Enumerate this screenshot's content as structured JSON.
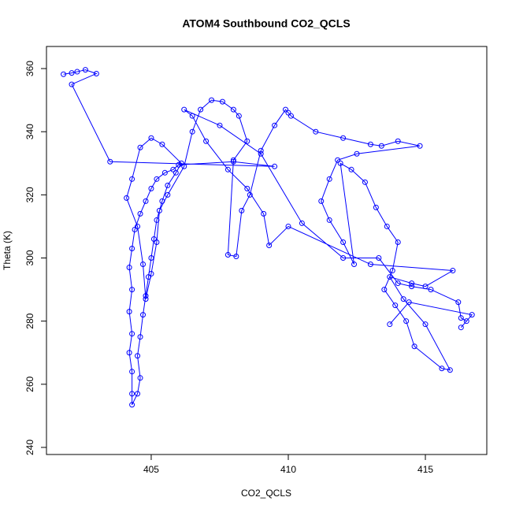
{
  "chart_data": {
    "type": "line",
    "title": "ATOM4 Southbound CO2_QCLS",
    "x_label": "CO2_QCLS",
    "y_label": "Theta (K)",
    "color": "#0000ff",
    "markers": true,
    "grid": false,
    "xlim": [
      401.18,
      417.24
    ],
    "ylim": [
      237.75,
      367
    ],
    "xticks": [
      405,
      410,
      415
    ],
    "yticks": [
      240,
      260,
      280,
      300,
      320,
      340,
      360
    ],
    "x": [
      401.8,
      402.1,
      402.3,
      402.6,
      403.0,
      402.1,
      403.5,
      409.5,
      408.0,
      406.0,
      405.8,
      405.5,
      405.2,
      405.0,
      404.8,
      404.6,
      404.4,
      404.3,
      404.2,
      404.3,
      404.2,
      404.3,
      404.2,
      404.3,
      404.3,
      404.3,
      404.5,
      404.6,
      404.5,
      404.6,
      404.7,
      404.8,
      404.9,
      405.0,
      405.1,
      405.2,
      405.4,
      405.6,
      405.9,
      406.1,
      405.4,
      405.0,
      404.6,
      404.3,
      404.1,
      404.5,
      404.7,
      404.8,
      405.0,
      405.2,
      405.3,
      405.6,
      406.2,
      406.5,
      406.8,
      407.2,
      407.6,
      408.0,
      408.2,
      408.5,
      408.0,
      407.8,
      408.1,
      408.3,
      408.6,
      409.0,
      409.5,
      409.9,
      410.0,
      410.1,
      411.0,
      412.0,
      413.0,
      413.4,
      414.0,
      414.8,
      412.5,
      411.8,
      411.5,
      411.2,
      411.5,
      412.0,
      412.4,
      411.9,
      412.3,
      412.8,
      413.2,
      413.6,
      414.0,
      413.8,
      413.5,
      413.9,
      414.3,
      414.6,
      415.6,
      415.9,
      415.0,
      414.2,
      413.7,
      414.5,
      415.0,
      416.0,
      413.0,
      410.0,
      409.3,
      409.1,
      408.5,
      407.8,
      407.0,
      406.5,
      406.2,
      407.5,
      409.0,
      410.5,
      412.0,
      413.3,
      414.0,
      414.5,
      415.2,
      416.2,
      416.3,
      416.5,
      416.3,
      416.7,
      414.4,
      413.7
    ],
    "values": [
      358.2,
      358.6,
      359.0,
      359.6,
      358.4,
      355.0,
      330.5,
      329.0,
      330.5,
      329.5,
      328.0,
      327.0,
      325,
      322,
      318,
      314,
      309,
      303,
      297,
      290,
      283,
      276,
      270,
      264,
      257,
      253.5,
      257,
      262,
      269,
      275,
      282,
      288,
      294,
      300,
      306,
      312,
      318,
      323,
      327,
      330,
      336,
      338,
      335,
      325,
      319,
      310,
      298,
      287,
      295,
      305,
      315,
      320,
      329,
      340,
      347,
      350,
      349.5,
      347,
      345,
      337,
      331,
      301,
      300.5,
      315,
      320,
      334,
      342,
      347,
      346,
      345,
      340,
      338,
      336,
      335.5,
      337,
      335.5,
      333,
      331,
      325,
      318,
      312,
      305,
      298,
      330,
      328,
      324,
      316,
      310,
      305,
      296,
      290,
      285,
      280,
      272,
      265,
      264.5,
      279,
      287,
      294,
      292,
      291,
      296,
      298,
      310,
      304,
      314,
      322,
      328,
      337,
      345,
      347,
      342,
      333,
      311,
      300,
      300,
      292,
      291,
      290,
      286,
      281,
      280,
      278,
      282,
      286,
      279
    ]
  }
}
